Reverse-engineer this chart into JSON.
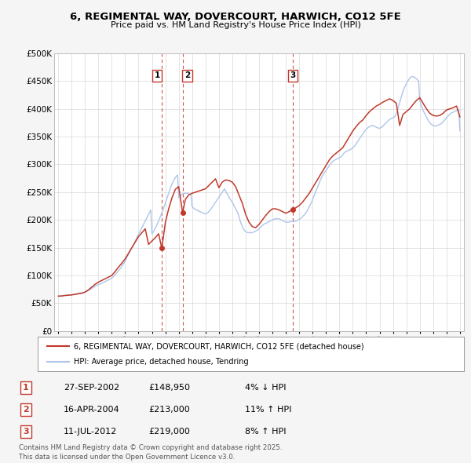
{
  "title": "6, REGIMENTAL WAY, DOVERCOURT, HARWICH, CO12 5FE",
  "subtitle": "Price paid vs. HM Land Registry's House Price Index (HPI)",
  "ylabel_ticks": [
    "£0",
    "£50K",
    "£100K",
    "£150K",
    "£200K",
    "£250K",
    "£300K",
    "£350K",
    "£400K",
    "£450K",
    "£500K"
  ],
  "ytick_values": [
    0,
    50000,
    100000,
    150000,
    200000,
    250000,
    300000,
    350000,
    400000,
    450000,
    500000
  ],
  "xlim": [
    1994.7,
    2025.3
  ],
  "ylim": [
    0,
    500000
  ],
  "transactions": [
    {
      "date": 2002.74,
      "price": 148950,
      "label": "1"
    },
    {
      "date": 2004.29,
      "price": 213000,
      "label": "2"
    },
    {
      "date": 2012.53,
      "price": 219000,
      "label": "3"
    }
  ],
  "transaction_labels": [
    {
      "num": "1",
      "date_str": "27-SEP-2002",
      "price_str": "£148,950",
      "change": "4% ↓ HPI"
    },
    {
      "num": "2",
      "date_str": "16-APR-2004",
      "price_str": "£213,000",
      "change": "11% ↑ HPI"
    },
    {
      "num": "3",
      "date_str": "11-JUL-2012",
      "price_str": "£219,000",
      "change": "8% ↑ HPI"
    }
  ],
  "hpi_line_color": "#aec6e8",
  "price_line_color": "#c0392b",
  "vline_color": "#c0392b",
  "background_color": "#f5f5f5",
  "plot_bg_color": "#ffffff",
  "legend_label_price": "6, REGIMENTAL WAY, DOVERCOURT, HARWICH, CO12 5FE (detached house)",
  "legend_label_hpi": "HPI: Average price, detached house, Tendring",
  "footer": "Contains HM Land Registry data © Crown copyright and database right 2025.\nThis data is licensed under the Open Government Licence v3.0.",
  "hpi_data_years": [
    1995.0,
    1995.083,
    1995.167,
    1995.25,
    1995.333,
    1995.417,
    1995.5,
    1995.583,
    1995.667,
    1995.75,
    1995.833,
    1995.917,
    1996.0,
    1996.083,
    1996.167,
    1996.25,
    1996.333,
    1996.417,
    1996.5,
    1996.583,
    1996.667,
    1996.75,
    1996.833,
    1996.917,
    1997.0,
    1997.083,
    1997.167,
    1997.25,
    1997.333,
    1997.417,
    1997.5,
    1997.583,
    1997.667,
    1997.75,
    1997.833,
    1997.917,
    1998.0,
    1998.083,
    1998.167,
    1998.25,
    1998.333,
    1998.417,
    1998.5,
    1998.583,
    1998.667,
    1998.75,
    1998.833,
    1998.917,
    1999.0,
    1999.083,
    1999.167,
    1999.25,
    1999.333,
    1999.417,
    1999.5,
    1999.583,
    1999.667,
    1999.75,
    1999.833,
    1999.917,
    2000.0,
    2000.083,
    2000.167,
    2000.25,
    2000.333,
    2000.417,
    2000.5,
    2000.583,
    2000.667,
    2000.75,
    2000.833,
    2000.917,
    2001.0,
    2001.083,
    2001.167,
    2001.25,
    2001.333,
    2001.417,
    2001.5,
    2001.583,
    2001.667,
    2001.75,
    2001.833,
    2001.917,
    2002.0,
    2002.083,
    2002.167,
    2002.25,
    2002.333,
    2002.417,
    2002.5,
    2002.583,
    2002.667,
    2002.75,
    2002.833,
    2002.917,
    2003.0,
    2003.083,
    2003.167,
    2003.25,
    2003.333,
    2003.417,
    2003.5,
    2003.583,
    2003.667,
    2003.75,
    2003.833,
    2003.917,
    2004.0,
    2004.083,
    2004.167,
    2004.25,
    2004.333,
    2004.417,
    2004.5,
    2004.583,
    2004.667,
    2004.75,
    2004.833,
    2004.917,
    2005.0,
    2005.083,
    2005.167,
    2005.25,
    2005.333,
    2005.417,
    2005.5,
    2005.583,
    2005.667,
    2005.75,
    2005.833,
    2005.917,
    2006.0,
    2006.083,
    2006.167,
    2006.25,
    2006.333,
    2006.417,
    2006.5,
    2006.583,
    2006.667,
    2006.75,
    2006.833,
    2006.917,
    2007.0,
    2007.083,
    2007.167,
    2007.25,
    2007.333,
    2007.417,
    2007.5,
    2007.583,
    2007.667,
    2007.75,
    2007.833,
    2007.917,
    2008.0,
    2008.083,
    2008.167,
    2008.25,
    2008.333,
    2008.417,
    2008.5,
    2008.583,
    2008.667,
    2008.75,
    2008.833,
    2008.917,
    2009.0,
    2009.083,
    2009.167,
    2009.25,
    2009.333,
    2009.417,
    2009.5,
    2009.583,
    2009.667,
    2009.75,
    2009.833,
    2009.917,
    2010.0,
    2010.083,
    2010.167,
    2010.25,
    2010.333,
    2010.417,
    2010.5,
    2010.583,
    2010.667,
    2010.75,
    2010.833,
    2010.917,
    2011.0,
    2011.083,
    2011.167,
    2011.25,
    2011.333,
    2011.417,
    2011.5,
    2011.583,
    2011.667,
    2011.75,
    2011.833,
    2011.917,
    2012.0,
    2012.083,
    2012.167,
    2012.25,
    2012.333,
    2012.417,
    2012.5,
    2012.583,
    2012.667,
    2012.75,
    2012.833,
    2012.917,
    2013.0,
    2013.083,
    2013.167,
    2013.25,
    2013.333,
    2013.417,
    2013.5,
    2013.583,
    2013.667,
    2013.75,
    2013.833,
    2013.917,
    2014.0,
    2014.083,
    2014.167,
    2014.25,
    2014.333,
    2014.417,
    2014.5,
    2014.583,
    2014.667,
    2014.75,
    2014.833,
    2014.917,
    2015.0,
    2015.083,
    2015.167,
    2015.25,
    2015.333,
    2015.417,
    2015.5,
    2015.583,
    2015.667,
    2015.75,
    2015.833,
    2015.917,
    2016.0,
    2016.083,
    2016.167,
    2016.25,
    2016.333,
    2016.417,
    2016.5,
    2016.583,
    2016.667,
    2016.75,
    2016.833,
    2016.917,
    2017.0,
    2017.083,
    2017.167,
    2017.25,
    2017.333,
    2017.417,
    2017.5,
    2017.583,
    2017.667,
    2017.75,
    2017.833,
    2017.917,
    2018.0,
    2018.083,
    2018.167,
    2018.25,
    2018.333,
    2018.417,
    2018.5,
    2018.583,
    2018.667,
    2018.75,
    2018.833,
    2018.917,
    2019.0,
    2019.083,
    2019.167,
    2019.25,
    2019.333,
    2019.417,
    2019.5,
    2019.583,
    2019.667,
    2019.75,
    2019.833,
    2019.917,
    2020.0,
    2020.083,
    2020.167,
    2020.25,
    2020.333,
    2020.417,
    2020.5,
    2020.583,
    2020.667,
    2020.75,
    2020.833,
    2020.917,
    2021.0,
    2021.083,
    2021.167,
    2021.25,
    2021.333,
    2021.417,
    2021.5,
    2021.583,
    2021.667,
    2021.75,
    2021.833,
    2021.917,
    2022.0,
    2022.083,
    2022.167,
    2022.25,
    2022.333,
    2022.417,
    2022.5,
    2022.583,
    2022.667,
    2022.75,
    2022.833,
    2022.917,
    2023.0,
    2023.083,
    2023.167,
    2023.25,
    2023.333,
    2023.417,
    2023.5,
    2023.583,
    2023.667,
    2023.75,
    2023.833,
    2023.917,
    2024.0,
    2024.083,
    2024.167,
    2024.25,
    2024.333,
    2024.417,
    2024.5,
    2024.583,
    2024.667,
    2024.75,
    2024.833,
    2024.917,
    2025.0
  ],
  "hpi_data_values": [
    62000,
    62500,
    63000,
    63500,
    63800,
    64000,
    64200,
    64400,
    64600,
    64800,
    65000,
    65200,
    65500,
    65800,
    66200,
    66600,
    67000,
    67400,
    67800,
    68200,
    68600,
    69000,
    69400,
    69800,
    70500,
    71200,
    72000,
    73000,
    74000,
    75200,
    76500,
    77800,
    79000,
    80200,
    81500,
    82800,
    83500,
    84200,
    85000,
    86000,
    87000,
    88000,
    89000,
    90000,
    91000,
    92000,
    93000,
    94000,
    95000,
    97000,
    99000,
    101000,
    103500,
    106000,
    108500,
    111000,
    113500,
    116500,
    119500,
    122500,
    126000,
    130000,
    134000,
    138000,
    142000,
    146000,
    150000,
    154000,
    158000,
    162000,
    166000,
    170000,
    174000,
    178000,
    182000,
    186000,
    190000,
    194000,
    198000,
    202000,
    206000,
    210000,
    214000,
    218000,
    175000,
    178000,
    181000,
    185000,
    189000,
    194000,
    198000,
    203000,
    208000,
    213000,
    218000,
    224000,
    230000,
    236000,
    242000,
    248000,
    254000,
    260000,
    265000,
    269000,
    273000,
    276000,
    279000,
    281000,
    240000,
    242000,
    244000,
    246000,
    247000,
    248000,
    248000,
    248000,
    248000,
    247000,
    246000,
    245000,
    224000,
    222000,
    220000,
    219000,
    218000,
    217000,
    216000,
    215000,
    214000,
    213000,
    212000,
    211000,
    211000,
    212000,
    213000,
    215000,
    217000,
    220000,
    223000,
    226000,
    229000,
    232000,
    235000,
    238000,
    241000,
    244000,
    247000,
    250000,
    253000,
    256000,
    252000,
    248000,
    245000,
    241000,
    238000,
    235000,
    232000,
    228000,
    224000,
    220000,
    216000,
    213000,
    206000,
    199000,
    193000,
    188000,
    184000,
    181000,
    179000,
    178000,
    177000,
    177000,
    177000,
    177000,
    177000,
    178000,
    179000,
    180000,
    181000,
    182000,
    184000,
    186000,
    188000,
    190000,
    192000,
    193000,
    194000,
    195000,
    196000,
    197000,
    198000,
    199000,
    200000,
    201000,
    202000,
    202000,
    202000,
    202000,
    202000,
    201000,
    200000,
    199000,
    198000,
    197000,
    196000,
    196000,
    196000,
    196000,
    197000,
    197000,
    197000,
    197000,
    197000,
    198000,
    199000,
    200000,
    201000,
    202000,
    204000,
    206000,
    208000,
    210000,
    213000,
    216000,
    220000,
    224000,
    228000,
    232000,
    237000,
    242000,
    247000,
    252000,
    257000,
    262000,
    267000,
    272000,
    276000,
    280000,
    283000,
    286000,
    289000,
    292000,
    295000,
    298000,
    301000,
    303000,
    305000,
    307000,
    308000,
    309000,
    310000,
    311000,
    312000,
    313000,
    315000,
    317000,
    320000,
    322000,
    323000,
    324000,
    325000,
    326000,
    327000,
    328000,
    330000,
    332000,
    334000,
    337000,
    340000,
    343000,
    346000,
    349000,
    352000,
    355000,
    358000,
    361000,
    363000,
    365000,
    367000,
    368000,
    369000,
    370000,
    370000,
    369000,
    368000,
    367000,
    366000,
    365000,
    365000,
    366000,
    367000,
    369000,
    371000,
    373000,
    375000,
    377000,
    379000,
    381000,
    382000,
    383000,
    384000,
    385000,
    387000,
    392000,
    397000,
    404000,
    411000,
    418000,
    425000,
    431000,
    437000,
    441000,
    445000,
    449000,
    452000,
    455000,
    457000,
    458000,
    458000,
    457000,
    456000,
    454000,
    452000,
    450000,
    415000,
    408000,
    402000,
    397000,
    393000,
    389000,
    385000,
    381000,
    378000,
    375000,
    373000,
    371000,
    370000,
    369000,
    369000,
    369000,
    370000,
    371000,
    372000,
    373000,
    375000,
    377000,
    379000,
    381000,
    384000,
    386000,
    388000,
    390000,
    392000,
    393000,
    394000,
    395000,
    396000,
    397000,
    398000,
    399000,
    360000
  ],
  "price_data_years": [
    1995.0,
    1995.25,
    1995.5,
    1995.75,
    1996.0,
    1996.25,
    1996.5,
    1996.75,
    1997.0,
    1997.25,
    1997.5,
    1997.75,
    1998.0,
    1998.25,
    1998.5,
    1998.75,
    1999.0,
    1999.25,
    1999.5,
    1999.75,
    2000.0,
    2000.25,
    2000.5,
    2000.75,
    2001.0,
    2001.25,
    2001.5,
    2001.75,
    2002.0,
    2002.25,
    2002.5,
    2002.74,
    2003.0,
    2003.25,
    2003.5,
    2003.75,
    2004.0,
    2004.29,
    2004.5,
    2004.75,
    2005.0,
    2005.25,
    2005.5,
    2005.75,
    2006.0,
    2006.25,
    2006.5,
    2006.75,
    2007.0,
    2007.25,
    2007.5,
    2007.75,
    2008.0,
    2008.25,
    2008.5,
    2008.75,
    2009.0,
    2009.25,
    2009.5,
    2009.75,
    2010.0,
    2010.25,
    2010.5,
    2010.75,
    2011.0,
    2011.25,
    2011.5,
    2011.75,
    2012.0,
    2012.25,
    2012.53,
    2012.75,
    2013.0,
    2013.25,
    2013.5,
    2013.75,
    2014.0,
    2014.25,
    2014.5,
    2014.75,
    2015.0,
    2015.25,
    2015.5,
    2015.75,
    2016.0,
    2016.25,
    2016.5,
    2016.75,
    2017.0,
    2017.25,
    2017.5,
    2017.75,
    2018.0,
    2018.25,
    2018.5,
    2018.75,
    2019.0,
    2019.25,
    2019.5,
    2019.75,
    2020.0,
    2020.25,
    2020.5,
    2020.75,
    2021.0,
    2021.25,
    2021.5,
    2021.75,
    2022.0,
    2022.25,
    2022.5,
    2022.75,
    2023.0,
    2023.25,
    2023.5,
    2023.75,
    2024.0,
    2024.25,
    2024.5,
    2024.75,
    2025.0
  ],
  "price_data_values": [
    63000,
    63000,
    64000,
    64500,
    65000,
    66000,
    67000,
    68000,
    70000,
    74000,
    79000,
    84000,
    88000,
    91000,
    94000,
    97000,
    100000,
    107000,
    115000,
    122000,
    130000,
    140000,
    150000,
    160000,
    170000,
    177000,
    184000,
    156000,
    162000,
    168000,
    175000,
    148950,
    195000,
    220000,
    240000,
    255000,
    260000,
    213000,
    237000,
    245000,
    248000,
    250000,
    252000,
    254000,
    256000,
    262000,
    268000,
    274000,
    258000,
    268000,
    272000,
    271000,
    268000,
    260000,
    245000,
    230000,
    210000,
    196000,
    188000,
    186000,
    192000,
    200000,
    208000,
    215000,
    220000,
    220000,
    218000,
    215000,
    212000,
    215000,
    219000,
    222000,
    226000,
    232000,
    240000,
    248000,
    258000,
    268000,
    278000,
    288000,
    298000,
    308000,
    315000,
    320000,
    325000,
    330000,
    340000,
    350000,
    360000,
    368000,
    375000,
    380000,
    388000,
    395000,
    400000,
    405000,
    408000,
    412000,
    415000,
    418000,
    415000,
    410000,
    370000,
    390000,
    395000,
    400000,
    408000,
    415000,
    420000,
    410000,
    400000,
    392000,
    388000,
    387000,
    388000,
    392000,
    398000,
    400000,
    402000,
    405000,
    385000
  ]
}
